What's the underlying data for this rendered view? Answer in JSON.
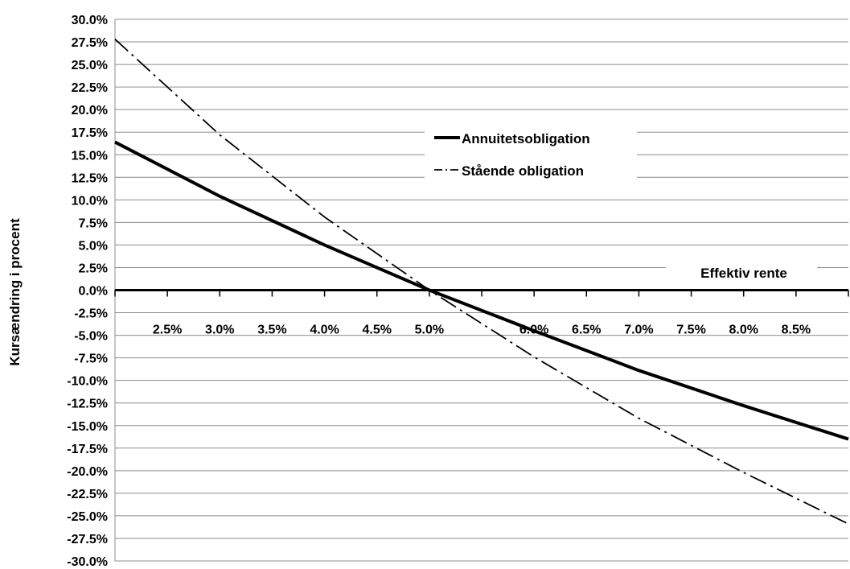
{
  "chart_data": {
    "type": "line",
    "xlabel": "Effektiv rente",
    "ylabel": "Kursændring  i procent",
    "xlim": [
      0.02,
      0.09
    ],
    "ylim": [
      -0.3,
      0.3
    ],
    "y_ticks": [
      0.3,
      0.275,
      0.25,
      0.225,
      0.2,
      0.175,
      0.15,
      0.125,
      0.1,
      0.075,
      0.05,
      0.025,
      0.0,
      -0.025,
      -0.05,
      -0.075,
      -0.1,
      -0.125,
      -0.15,
      -0.175,
      -0.2,
      -0.225,
      -0.25,
      -0.275,
      -0.3
    ],
    "y_tick_labels": [
      "30.0%",
      "27.5%",
      "25.0%",
      "22.5%",
      "20.0%",
      "17.5%",
      "15.0%",
      "12.5%",
      "10.0%",
      "7.5%",
      "5.0%",
      "2.5%",
      "0.0%",
      "-2.5%",
      "-5.0%",
      "-7.5%",
      "-10.0%",
      "-12.5%",
      "-15.0%",
      "-17.5%",
      "-20.0%",
      "-22.5%",
      "-25.0%",
      "-27.5%",
      "-30.0%"
    ],
    "x_ticks": [
      0.025,
      0.03,
      0.035,
      0.04,
      0.045,
      0.05,
      0.06,
      0.065,
      0.07,
      0.075,
      0.08,
      0.085
    ],
    "x_tick_labels": [
      "2.5%",
      "3.0%",
      "3.5%",
      "4.0%",
      "4.5%",
      "5.0%",
      "6.0%",
      "6.5%",
      "7.0%",
      "7.5%",
      "8.0%",
      "8.5%"
    ],
    "x_minor_ticks": [
      0.02,
      0.025,
      0.03,
      0.035,
      0.04,
      0.045,
      0.05,
      0.055,
      0.06,
      0.065,
      0.07,
      0.075,
      0.08,
      0.085,
      0.09
    ],
    "grid": "horizontal",
    "legend_position": "upper-center",
    "series": [
      {
        "name": "Annuitetsobligation",
        "style": "solid-thick",
        "x": [
          0.02,
          0.03,
          0.04,
          0.05,
          0.06,
          0.07,
          0.08,
          0.09
        ],
        "y": [
          0.164,
          0.104,
          0.05,
          0.0,
          -0.045,
          -0.089,
          -0.128,
          -0.165
        ]
      },
      {
        "name": "Stående obligation",
        "style": "dash-dot",
        "x": [
          0.02,
          0.03,
          0.04,
          0.05,
          0.06,
          0.07,
          0.08,
          0.09
        ],
        "y": [
          0.278,
          0.172,
          0.081,
          0.0,
          -0.074,
          -0.142,
          -0.202,
          -0.259
        ]
      }
    ]
  }
}
